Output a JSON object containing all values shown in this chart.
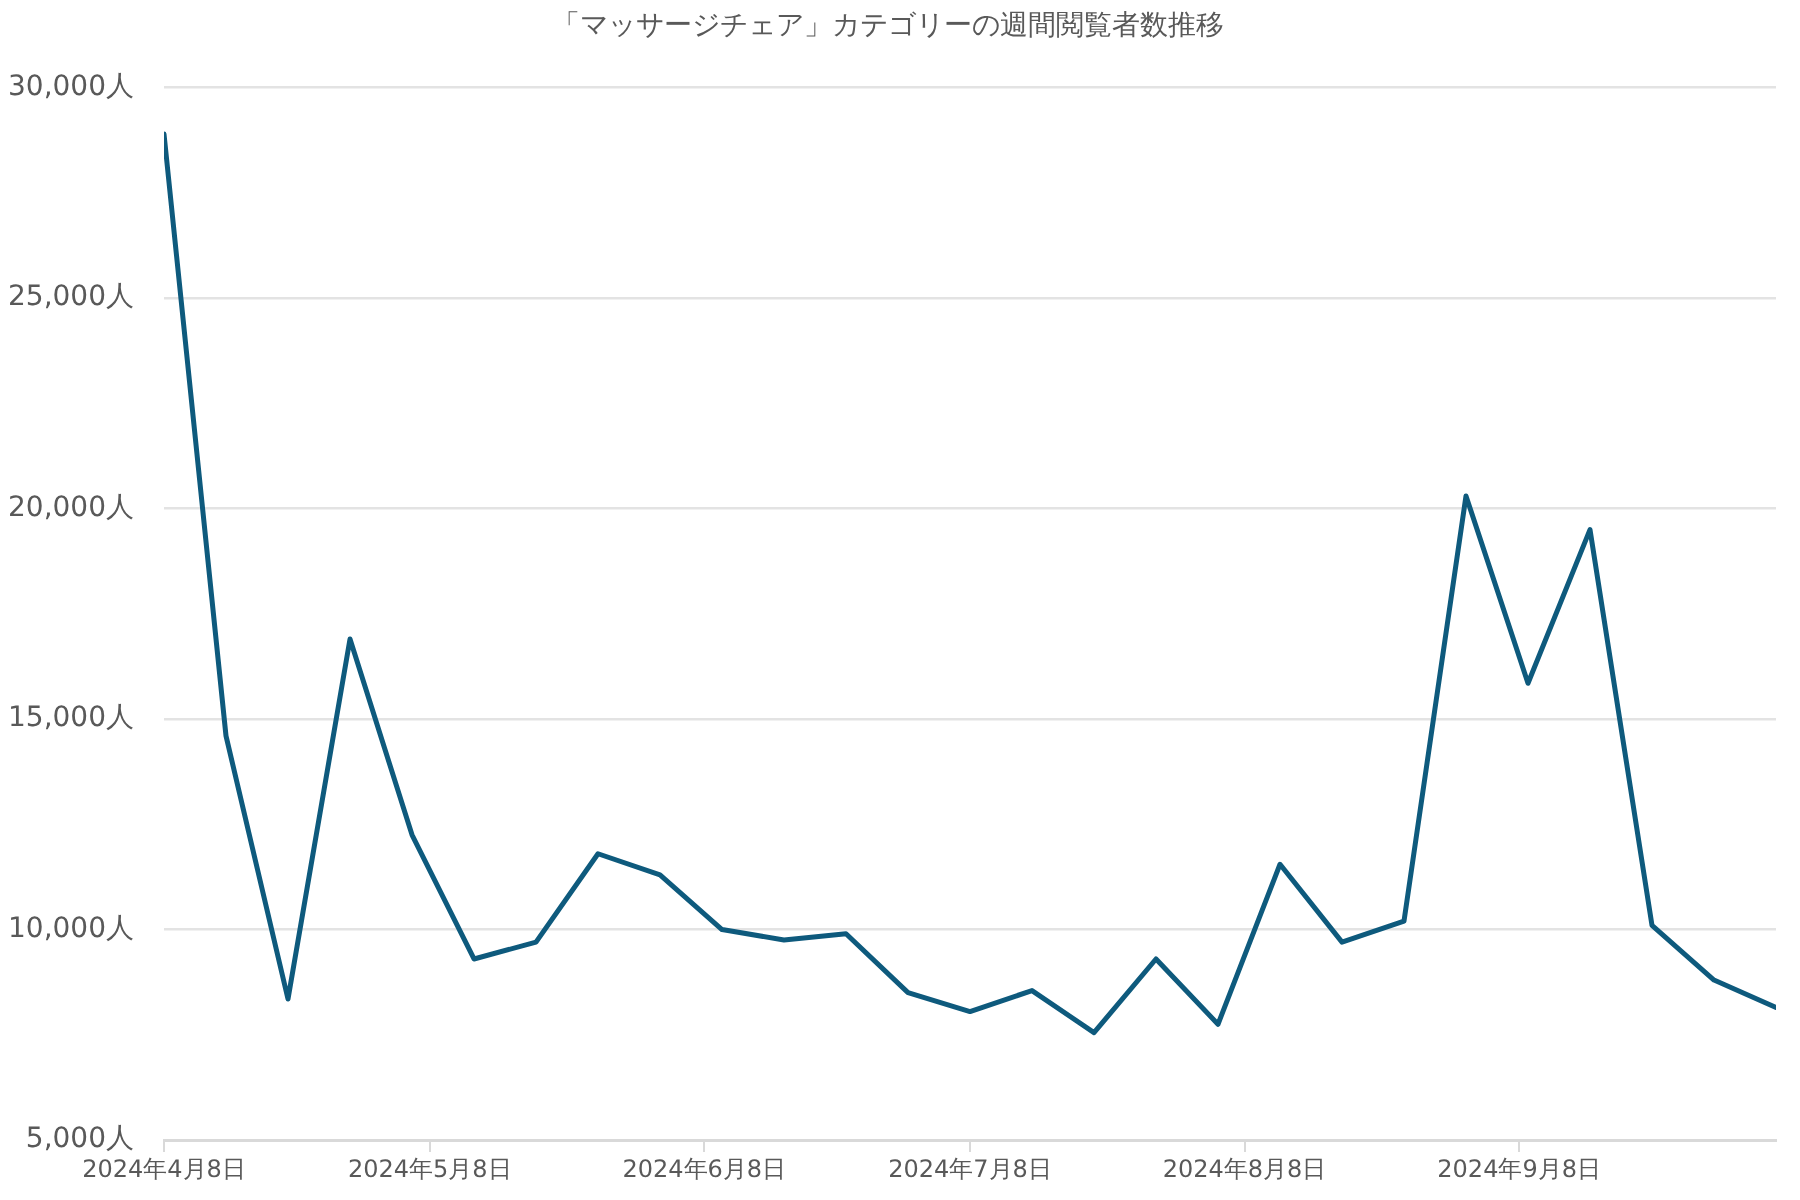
{
  "chart_data": {
    "type": "line",
    "title": "「マッサージチェア」カテゴリーの週間閲覧者数推移",
    "x": [
      "2024-04-08",
      "2024-04-15",
      "2024-04-22",
      "2024-04-29",
      "2024-05-06",
      "2024-05-13",
      "2024-05-20",
      "2024-05-27",
      "2024-06-03",
      "2024-06-10",
      "2024-06-17",
      "2024-06-24",
      "2024-07-01",
      "2024-07-08",
      "2024-07-15",
      "2024-07-22",
      "2024-07-29",
      "2024-08-05",
      "2024-08-12",
      "2024-08-19",
      "2024-08-26",
      "2024-09-02",
      "2024-09-09",
      "2024-09-16",
      "2024-09-23",
      "2024-09-30",
      "2024-10-07"
    ],
    "series": [
      {
        "color": "#0e5a7d",
        "values": [
          28900,
          14600,
          8350,
          16900,
          12250,
          9300,
          9700,
          11800,
          11300,
          10000,
          9750,
          9900,
          8500,
          8050,
          8550,
          7550,
          9300,
          7750,
          11550,
          9700,
          10200,
          20300,
          15850,
          19500,
          10100,
          8800,
          8150
        ]
      }
    ],
    "xlim": [
      "2024-04-08",
      "2024-10-07"
    ],
    "xticks": [
      {
        "value": "2024-04-08",
        "label": "2024年4月8日"
      },
      {
        "value": "2024-05-08",
        "label": "2024年5月8日"
      },
      {
        "value": "2024-06-08",
        "label": "2024年6月8日"
      },
      {
        "value": "2024-07-08",
        "label": "2024年7月8日"
      },
      {
        "value": "2024-08-08",
        "label": "2024年8月8日"
      },
      {
        "value": "2024-09-08",
        "label": "2024年9月8日"
      }
    ],
    "ylim": [
      5000,
      30000
    ],
    "yticks": [
      {
        "value": 5000,
        "label": "5,000人"
      },
      {
        "value": 10000,
        "label": "10,000人"
      },
      {
        "value": 15000,
        "label": "15,000人"
      },
      {
        "value": 20000,
        "label": "20,000人"
      },
      {
        "value": 25000,
        "label": "25,000人"
      },
      {
        "value": 30000,
        "label": "30,000人"
      }
    ],
    "grid": "y",
    "marker": "none",
    "legend": false
  }
}
